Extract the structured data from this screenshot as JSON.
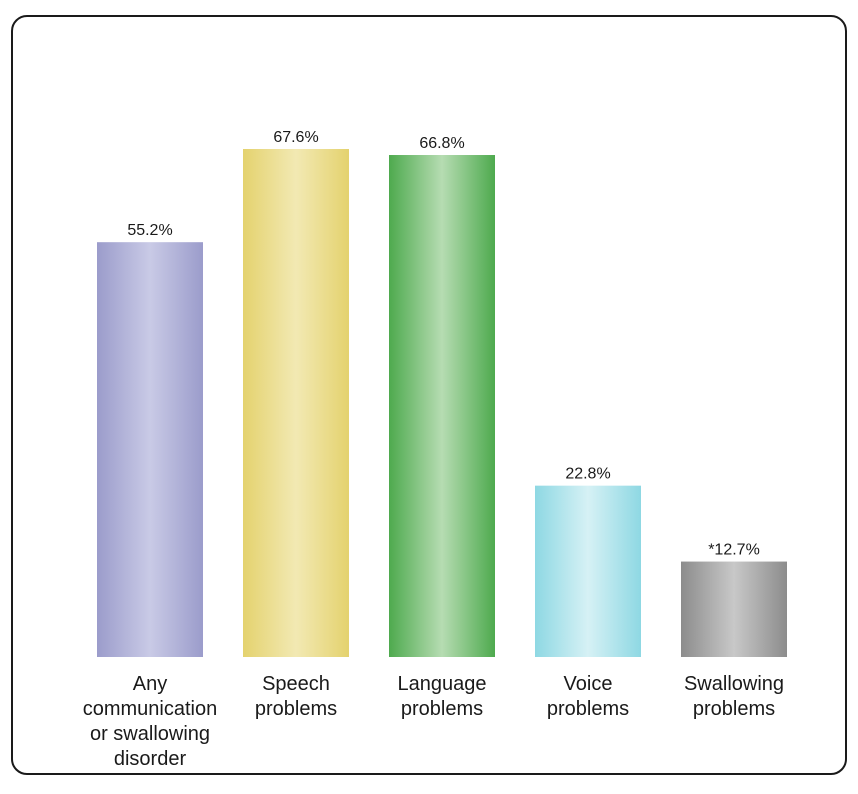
{
  "chart_data": {
    "type": "bar",
    "title": "",
    "xlabel": "",
    "ylabel": "",
    "ylim": [
      0,
      68
    ],
    "grid": false,
    "categories": [
      "Any communication or swallowing disorder",
      "Speech problems",
      "Language problems",
      "Voice problems",
      "Swallowing problems"
    ],
    "category_label_lines": [
      [
        "Any",
        "communication",
        "or swallowing",
        "disorder"
      ],
      [
        "Speech",
        "problems"
      ],
      [
        "Language",
        "problems"
      ],
      [
        "Voice",
        "problems"
      ],
      [
        "Swallowing",
        "problems"
      ]
    ],
    "values": [
      55.2,
      67.6,
      66.8,
      22.8,
      12.7
    ],
    "data_labels": [
      "55.2%",
      "67.6%",
      "66.8%",
      "22.8%",
      "*12.7%"
    ],
    "colors": [
      {
        "edge": "#9b9ccb",
        "center": "#c9cae6"
      },
      {
        "edge": "#e4d26e",
        "center": "#f2e9b3"
      },
      {
        "edge": "#4eaa4e",
        "center": "#b6dcb2"
      },
      {
        "edge": "#8ed8e3",
        "center": "#d6f1f5"
      },
      {
        "edge": "#8c8c8c",
        "center": "#c8c8c8"
      }
    ]
  }
}
